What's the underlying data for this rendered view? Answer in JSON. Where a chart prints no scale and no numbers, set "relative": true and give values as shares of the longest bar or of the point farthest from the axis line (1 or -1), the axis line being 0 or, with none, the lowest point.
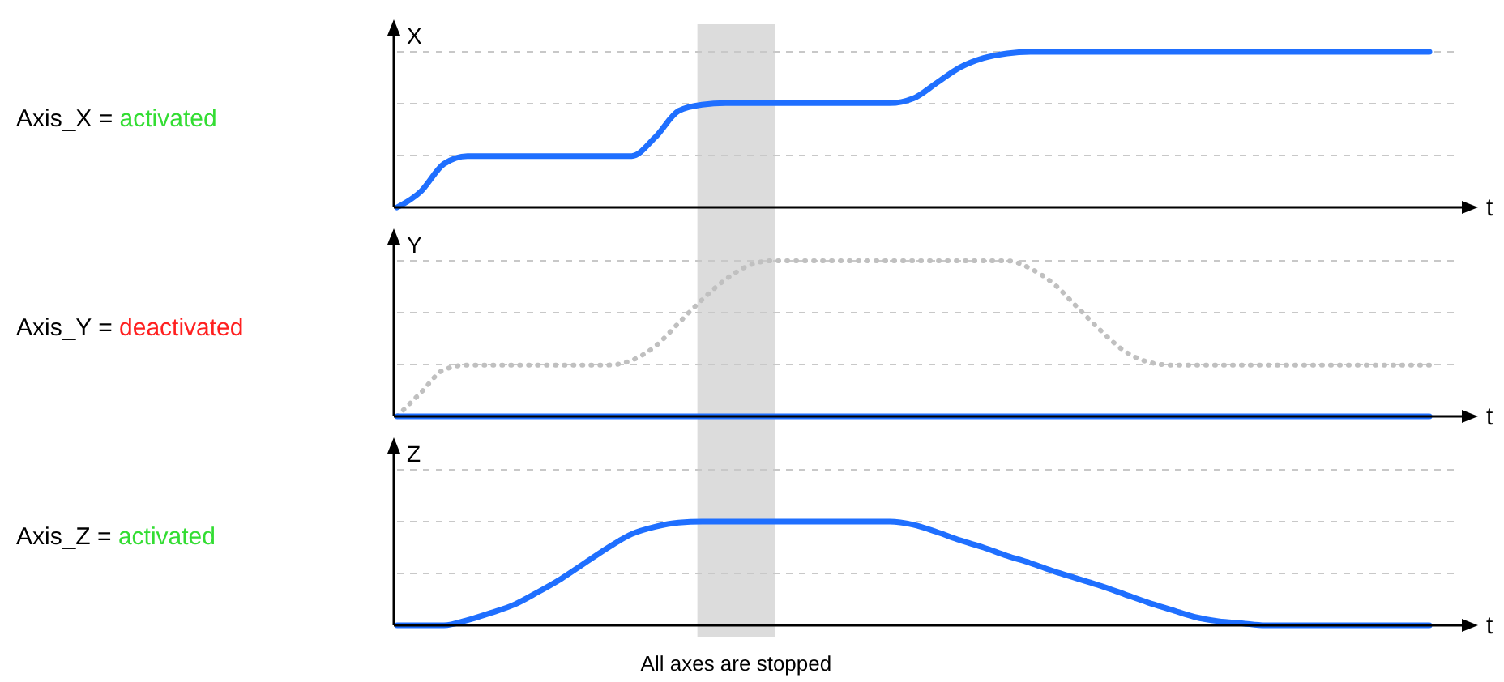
{
  "chart_data": [
    {
      "type": "line",
      "annotations": [
        "Axis_X =",
        "activated"
      ],
      "ylabel": "X",
      "xlabel": "t",
      "relative": true,
      "marker": "none",
      "categories": [
        null,
        null,
        null,
        null,
        null,
        null,
        null,
        null,
        null,
        null,
        null,
        null,
        null,
        null,
        null,
        null,
        null,
        null,
        null,
        null,
        null,
        null,
        null,
        null,
        null,
        null,
        null,
        null,
        null,
        null,
        null,
        null,
        null,
        null,
        null,
        null,
        null,
        null,
        null,
        null,
        null,
        null,
        null,
        null,
        null
      ],
      "series": [
        {
          "color": "#1f6fff",
          "line_style": "solid",
          "values": [
            0,
            0.1,
            0.28,
            0.33,
            0.33,
            0.33,
            0.33,
            0.33,
            0.33,
            0.33,
            0.33,
            0.45,
            0.62,
            0.66,
            0.67,
            0.67,
            0.67,
            0.67,
            0.67,
            0.67,
            0.67,
            0.67,
            0.7,
            0.8,
            0.9,
            0.96,
            0.99,
            1,
            1,
            1,
            1,
            1,
            1,
            1,
            1,
            1,
            1,
            1,
            1,
            1,
            1,
            1,
            1,
            1,
            1
          ]
        }
      ],
      "ref_lines": [
        {
          "axis": "y",
          "value": 0.3333,
          "color": "#c8c8c8",
          "line_style": "dashed"
        },
        {
          "axis": "y",
          "value": 0.6667,
          "color": "#c8c8c8",
          "line_style": "dashed"
        },
        {
          "axis": "y",
          "value": 1,
          "color": "#c8c8c8",
          "line_style": "dashed"
        }
      ]
    },
    {
      "type": "line",
      "annotations": [
        "Axis_Y =",
        "deactivated"
      ],
      "ylabel": "Y",
      "xlabel": "t",
      "relative": true,
      "marker": "none",
      "categories": [
        null,
        null,
        null,
        null,
        null,
        null,
        null,
        null,
        null,
        null,
        null,
        null,
        null,
        null,
        null,
        null,
        null,
        null,
        null,
        null,
        null,
        null,
        null,
        null,
        null,
        null,
        null,
        null,
        null,
        null,
        null,
        null,
        null,
        null,
        null,
        null,
        null,
        null,
        null,
        null,
        null,
        null,
        null,
        null,
        null
      ],
      "series": [
        {
          "color": "#c0c0c0",
          "line_style": "dotted",
          "values": [
            0,
            0.15,
            0.3,
            0.33,
            0.33,
            0.33,
            0.33,
            0.33,
            0.33,
            0.33,
            0.36,
            0.45,
            0.6,
            0.75,
            0.88,
            0.97,
            1,
            1,
            1,
            1,
            1,
            1,
            1,
            1,
            1,
            1,
            1,
            0.95,
            0.85,
            0.7,
            0.55,
            0.42,
            0.35,
            0.33,
            0.33,
            0.33,
            0.33,
            0.33,
            0.33,
            0.33,
            0.33,
            0.33,
            0.33,
            0.33,
            0.33
          ]
        },
        {
          "color": "#1f6fff",
          "line_style": "solid",
          "values": [
            0,
            0,
            0,
            0,
            0,
            0,
            0,
            0,
            0,
            0,
            0,
            0,
            0,
            0,
            0,
            0,
            0,
            0,
            0,
            0,
            0,
            0,
            0,
            0,
            0,
            0,
            0,
            0,
            0,
            0,
            0,
            0,
            0,
            0,
            0,
            0,
            0,
            0,
            0,
            0,
            0,
            0,
            0,
            0,
            0
          ]
        }
      ],
      "ref_lines": [
        {
          "axis": "y",
          "value": 0.3333,
          "color": "#c8c8c8",
          "line_style": "dashed"
        },
        {
          "axis": "y",
          "value": 0.6667,
          "color": "#c8c8c8",
          "line_style": "dashed"
        },
        {
          "axis": "y",
          "value": 1,
          "color": "#c8c8c8",
          "line_style": "dashed"
        }
      ]
    },
    {
      "type": "line",
      "annotations": [
        "Axis_Z =",
        "activated",
        "All axes are stopped"
      ],
      "ylabel": "Z",
      "xlabel": "t",
      "relative": true,
      "marker": "none",
      "categories": [
        null,
        null,
        null,
        null,
        null,
        null,
        null,
        null,
        null,
        null,
        null,
        null,
        null,
        null,
        null,
        null,
        null,
        null,
        null,
        null,
        null,
        null,
        null,
        null,
        null,
        null,
        null,
        null,
        null,
        null,
        null,
        null,
        null,
        null,
        null,
        null,
        null,
        null,
        null,
        null,
        null,
        null,
        null,
        null,
        null
      ],
      "series": [
        {
          "color": "#1f6fff",
          "line_style": "solid",
          "values": [
            0,
            0,
            0,
            0.05,
            0.12,
            0.2,
            0.32,
            0.45,
            0.6,
            0.75,
            0.88,
            0.95,
            0.99,
            1,
            1,
            1,
            1,
            1,
            1,
            1,
            1,
            1,
            0.97,
            0.9,
            0.82,
            0.75,
            0.67,
            0.6,
            0.52,
            0.45,
            0.38,
            0.3,
            0.22,
            0.15,
            0.08,
            0.04,
            0.02,
            0,
            0,
            0,
            0,
            0,
            0,
            0,
            0
          ]
        }
      ],
      "ref_lines": [
        {
          "axis": "y",
          "value": 0.5,
          "color": "#c8c8c8",
          "line_style": "dashed"
        },
        {
          "axis": "y",
          "value": 1,
          "color": "#c8c8c8",
          "line_style": "dashed"
        },
        {
          "axis": "y",
          "value": 1.5,
          "color": "#c8c8c8",
          "line_style": "dashed"
        }
      ]
    }
  ]
}
